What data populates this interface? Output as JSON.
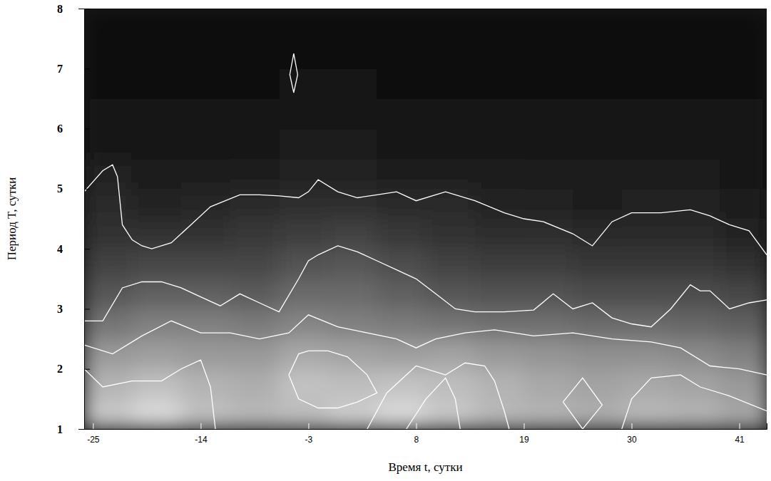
{
  "chart_data": {
    "type": "heatmap",
    "x_label": "Время t, сутки",
    "y_label": "Период T, сутки",
    "xlim": [
      -25.9,
      43.8
    ],
    "ylim": [
      1,
      8
    ],
    "xticks": [
      -25,
      -14,
      -3,
      8,
      19,
      30,
      41
    ],
    "yticks": [
      1,
      2,
      3,
      4,
      5,
      6,
      7,
      8
    ],
    "x": [
      -23.5,
      -18.5,
      -13.5,
      -8.5,
      -3.5,
      1.5,
      6.5,
      11.5,
      16.5,
      21.5,
      26.5,
      31.5,
      36.5,
      41.5
    ],
    "y": [
      1.25,
      1.75,
      2.25,
      2.75,
      3.25,
      3.75,
      4.25,
      4.75,
      5.25,
      5.75,
      6.25,
      6.75,
      7.25,
      7.75
    ],
    "zlim": [
      0,
      1
    ],
    "z": [
      [
        0.78,
        0.85,
        0.75,
        0.72,
        0.74,
        0.8,
        0.85,
        0.78,
        0.72,
        0.7,
        0.68,
        0.72,
        0.7,
        0.65
      ],
      [
        0.7,
        0.75,
        0.7,
        0.68,
        0.76,
        0.74,
        0.76,
        0.74,
        0.7,
        0.66,
        0.64,
        0.66,
        0.64,
        0.6
      ],
      [
        0.6,
        0.62,
        0.6,
        0.6,
        0.66,
        0.64,
        0.62,
        0.64,
        0.6,
        0.58,
        0.56,
        0.56,
        0.54,
        0.5
      ],
      [
        0.46,
        0.5,
        0.5,
        0.48,
        0.52,
        0.5,
        0.48,
        0.46,
        0.44,
        0.44,
        0.42,
        0.42,
        0.4,
        0.38
      ],
      [
        0.34,
        0.38,
        0.38,
        0.36,
        0.42,
        0.42,
        0.38,
        0.34,
        0.32,
        0.32,
        0.3,
        0.3,
        0.3,
        0.28
      ],
      [
        0.26,
        0.28,
        0.28,
        0.28,
        0.32,
        0.34,
        0.3,
        0.26,
        0.24,
        0.24,
        0.22,
        0.22,
        0.22,
        0.2
      ],
      [
        0.2,
        0.2,
        0.2,
        0.22,
        0.24,
        0.26,
        0.22,
        0.2,
        0.18,
        0.18,
        0.16,
        0.17,
        0.17,
        0.14
      ],
      [
        0.16,
        0.14,
        0.15,
        0.17,
        0.18,
        0.18,
        0.17,
        0.16,
        0.14,
        0.13,
        0.12,
        0.13,
        0.13,
        0.11
      ],
      [
        0.13,
        0.1,
        0.11,
        0.12,
        0.13,
        0.13,
        0.12,
        0.12,
        0.11,
        0.1,
        0.1,
        0.1,
        0.1,
        0.09
      ],
      [
        0.09,
        0.08,
        0.08,
        0.09,
        0.1,
        0.1,
        0.09,
        0.09,
        0.09,
        0.08,
        0.08,
        0.08,
        0.08,
        0.08
      ],
      [
        0.07,
        0.07,
        0.07,
        0.07,
        0.08,
        0.08,
        0.07,
        0.07,
        0.07,
        0.07,
        0.07,
        0.07,
        0.07,
        0.07
      ],
      [
        0.06,
        0.06,
        0.06,
        0.06,
        0.07,
        0.07,
        0.06,
        0.06,
        0.06,
        0.06,
        0.06,
        0.06,
        0.06,
        0.06
      ],
      [
        0.05,
        0.05,
        0.05,
        0.05,
        0.06,
        0.06,
        0.05,
        0.05,
        0.05,
        0.05,
        0.05,
        0.05,
        0.05,
        0.05
      ],
      [
        0.05,
        0.05,
        0.05,
        0.05,
        0.05,
        0.05,
        0.05,
        0.05,
        0.05,
        0.05,
        0.05,
        0.05,
        0.05,
        0.05
      ]
    ],
    "contours": [
      {
        "x": [
          -25.9,
          -24,
          -23,
          -22.5,
          -22,
          -21,
          -20,
          -19,
          -17,
          -15,
          -13,
          -10,
          -8,
          -6,
          -4,
          -3,
          -2,
          0,
          2,
          4,
          6,
          8,
          11,
          14,
          17,
          19,
          21,
          24,
          26,
          28,
          30,
          33,
          36,
          38,
          40,
          42,
          43.8
        ],
        "y": [
          4.95,
          5.3,
          5.4,
          5.2,
          4.4,
          4.15,
          4.05,
          4.0,
          4.1,
          4.4,
          4.7,
          4.9,
          4.9,
          4.88,
          4.85,
          4.95,
          5.15,
          4.95,
          4.85,
          4.9,
          4.95,
          4.8,
          4.95,
          4.8,
          4.6,
          4.5,
          4.45,
          4.25,
          4.05,
          4.45,
          4.6,
          4.6,
          4.65,
          4.55,
          4.4,
          4.3,
          3.9
        ]
      },
      {
        "x": [
          -25.9,
          -24,
          -22,
          -20,
          -18,
          -16,
          -14,
          -12,
          -10,
          -8,
          -6,
          -4,
          -3,
          -2,
          0,
          2,
          4,
          6,
          8,
          10,
          12,
          14,
          17,
          20,
          22,
          24,
          26,
          28,
          30,
          32,
          34,
          36,
          37,
          38,
          40,
          42,
          43.8
        ],
        "y": [
          2.8,
          2.8,
          3.35,
          3.45,
          3.45,
          3.35,
          3.2,
          3.05,
          3.25,
          3.1,
          2.95,
          3.5,
          3.8,
          3.9,
          4.05,
          3.95,
          3.8,
          3.65,
          3.5,
          3.25,
          3.0,
          2.95,
          2.95,
          2.98,
          3.25,
          3.0,
          3.1,
          2.85,
          2.75,
          2.7,
          3.0,
          3.4,
          3.3,
          3.3,
          3.0,
          3.1,
          3.15
        ]
      },
      {
        "x": [
          -25.9,
          -23,
          -20,
          -17,
          -14,
          -11,
          -8,
          -5,
          -3,
          0,
          3,
          6,
          8,
          10,
          13,
          16,
          20,
          24,
          28,
          32,
          35,
          38,
          41,
          43.8
        ],
        "y": [
          2.4,
          2.25,
          2.55,
          2.8,
          2.6,
          2.6,
          2.5,
          2.6,
          2.9,
          2.7,
          2.6,
          2.5,
          2.35,
          2.5,
          2.6,
          2.65,
          2.55,
          2.6,
          2.5,
          2.45,
          2.35,
          2.05,
          2.0,
          1.9
        ]
      },
      {
        "x": [
          -25.9,
          -24,
          -21,
          -18,
          -16,
          -14,
          -13,
          -12.5
        ],
        "y": [
          2.0,
          1.7,
          1.8,
          1.8,
          2.0,
          2.15,
          1.7,
          1.0
        ]
      },
      {
        "x": [
          -5,
          -4,
          -3,
          -1,
          1,
          3,
          4,
          2,
          0,
          -2,
          -4,
          -5
        ],
        "y": [
          1.9,
          2.25,
          2.3,
          2.3,
          2.2,
          1.9,
          1.6,
          1.45,
          1.35,
          1.35,
          1.5,
          1.9
        ]
      },
      {
        "x": [
          3,
          5,
          8,
          11,
          13,
          15,
          16,
          17,
          17.5
        ],
        "y": [
          1.0,
          1.6,
          2.05,
          1.9,
          2.1,
          2.05,
          1.8,
          1.3,
          1.0
        ]
      },
      {
        "x": [
          7,
          9,
          11,
          12,
          12.5
        ],
        "y": [
          1.0,
          1.5,
          1.85,
          1.5,
          1.0
        ]
      },
      {
        "x": [
          23,
          25,
          27,
          25,
          23
        ],
        "y": [
          1.45,
          1.85,
          1.4,
          1.0,
          1.45
        ]
      },
      {
        "x": [
          29,
          30,
          32,
          35,
          37,
          40,
          43.8
        ],
        "y": [
          1.0,
          1.5,
          1.85,
          1.9,
          1.7,
          1.55,
          1.3
        ]
      },
      {
        "x": [
          -4.5,
          -4.1,
          -4.5,
          -4.9,
          -4.5
        ],
        "y": [
          7.25,
          6.9,
          6.6,
          6.9,
          7.25
        ]
      }
    ]
  }
}
